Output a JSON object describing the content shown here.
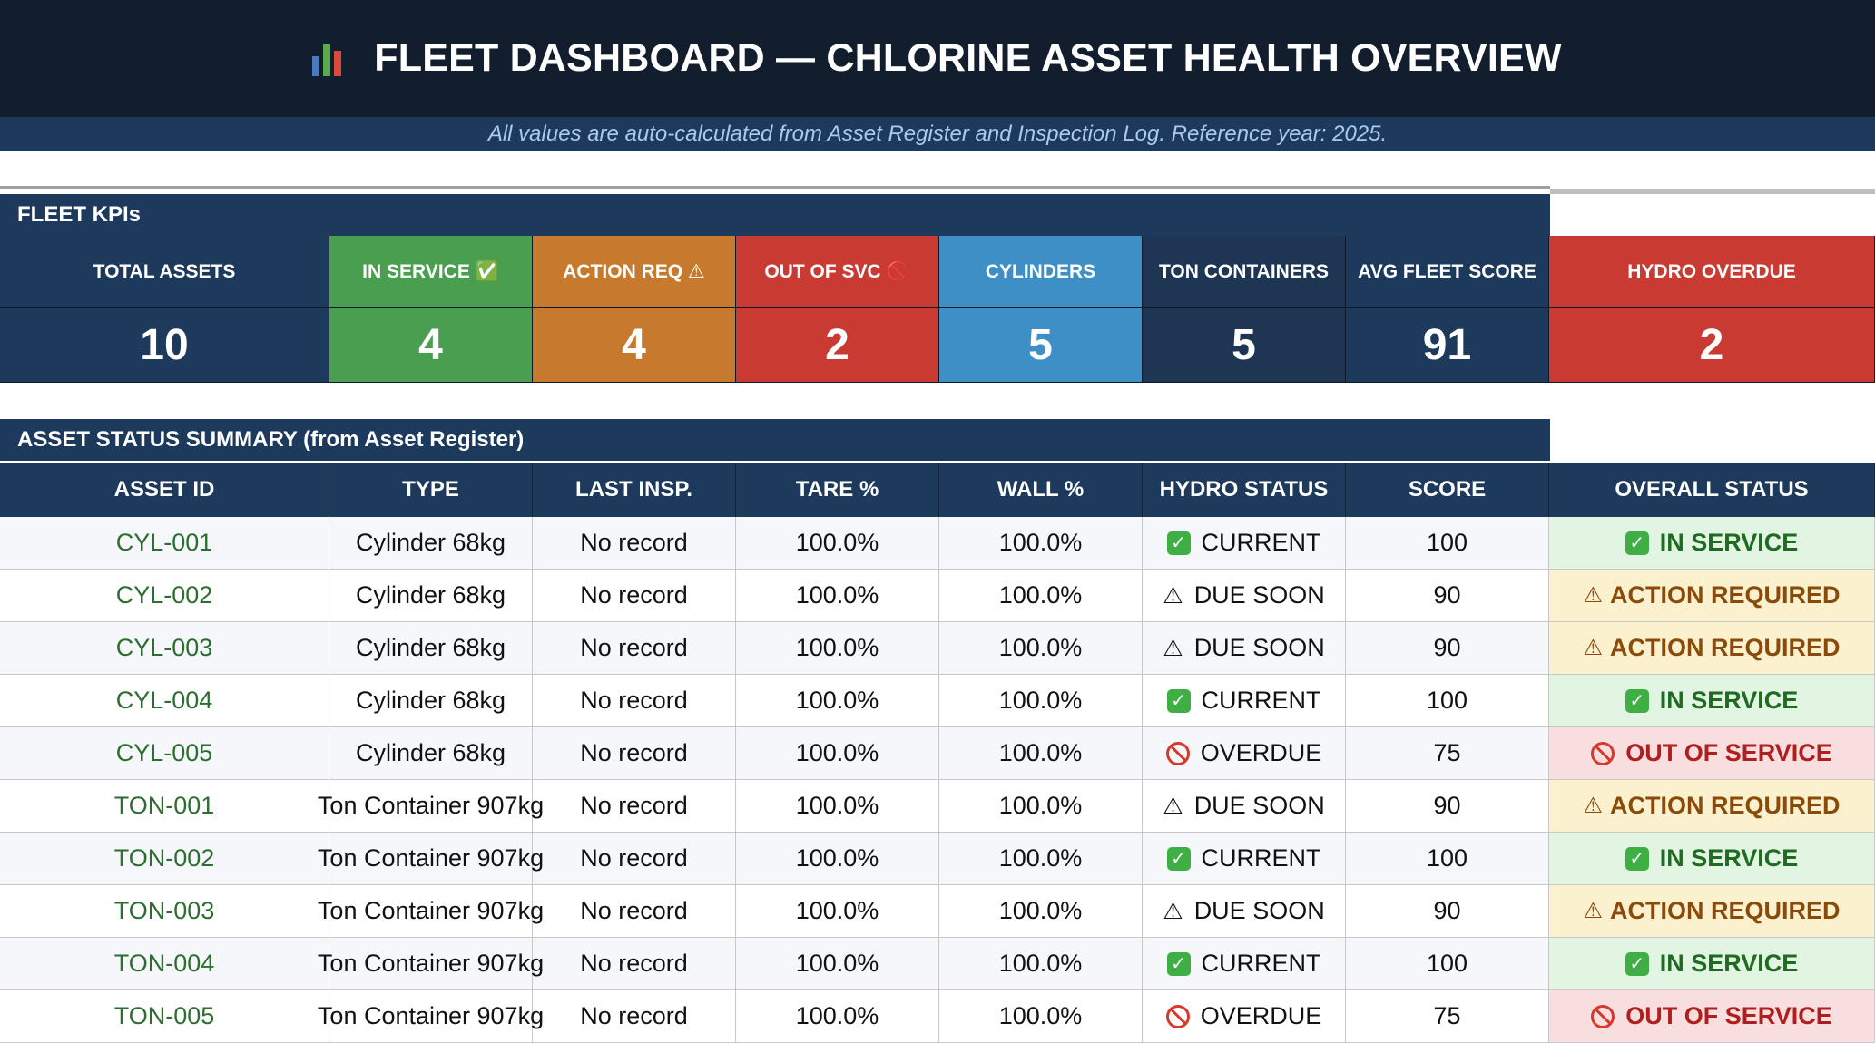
{
  "header": {
    "title": "FLEET DASHBOARD — CHLORINE ASSET HEALTH OVERVIEW",
    "title_icon": "bar-chart-icon",
    "subtitle": "All values are auto-calculated from Asset Register and Inspection Log. Reference year: 2025."
  },
  "kpis": {
    "section_title": "FLEET KPIs",
    "items": [
      {
        "label": "TOTAL ASSETS",
        "value": "10",
        "color": "#1d3a5c"
      },
      {
        "label": "IN SERVICE ✅",
        "value": "4",
        "color": "#4a9e4f"
      },
      {
        "label": "ACTION REQ ⚠",
        "value": "4",
        "color": "#c77a2e"
      },
      {
        "label": "OUT OF SVC 🚫",
        "value": "2",
        "color": "#c93a33"
      },
      {
        "label": "CYLINDERS",
        "value": "5",
        "color": "#3d8fc5"
      },
      {
        "label": "TON CONTAINERS",
        "value": "5",
        "color": "#1e3554"
      },
      {
        "label": "AVG FLEET SCORE",
        "value": "91",
        "color": "#1d3a5c"
      },
      {
        "label": "HYDRO OVERDUE",
        "value": "2",
        "color": "#c93a33"
      }
    ]
  },
  "summary": {
    "section_title": "ASSET STATUS SUMMARY (from Asset Register)",
    "columns": [
      "ASSET ID",
      "TYPE",
      "LAST INSP.",
      "TARE %",
      "WALL %",
      "HYDRO STATUS",
      "SCORE",
      "OVERALL STATUS"
    ],
    "rows": [
      {
        "asset_id": "CYL-001",
        "type": "Cylinder 68kg",
        "last_insp": "No record",
        "tare": "100.0%",
        "wall": "100.0%",
        "hydro_icon": "check",
        "hydro": "CURRENT",
        "score": "100",
        "status_icon": "check",
        "status": "IN SERVICE",
        "status_kind": "in"
      },
      {
        "asset_id": "CYL-002",
        "type": "Cylinder 68kg",
        "last_insp": "No record",
        "tare": "100.0%",
        "wall": "100.0%",
        "hydro_icon": "warn",
        "hydro": "DUE SOON",
        "score": "90",
        "status_icon": "warn",
        "status": "ACTION REQUIRED",
        "status_kind": "act"
      },
      {
        "asset_id": "CYL-003",
        "type": "Cylinder 68kg",
        "last_insp": "No record",
        "tare": "100.0%",
        "wall": "100.0%",
        "hydro_icon": "warn",
        "hydro": "DUE SOON",
        "score": "90",
        "status_icon": "warn",
        "status": "ACTION REQUIRED",
        "status_kind": "act"
      },
      {
        "asset_id": "CYL-004",
        "type": "Cylinder 68kg",
        "last_insp": "No record",
        "tare": "100.0%",
        "wall": "100.0%",
        "hydro_icon": "check",
        "hydro": "CURRENT",
        "score": "100",
        "status_icon": "check",
        "status": "IN SERVICE",
        "status_kind": "in"
      },
      {
        "asset_id": "CYL-005",
        "type": "Cylinder 68kg",
        "last_insp": "No record",
        "tare": "100.0%",
        "wall": "100.0%",
        "hydro_icon": "block",
        "hydro": "OVERDUE",
        "score": "75",
        "status_icon": "block",
        "status": "OUT OF SERVICE",
        "status_kind": "out"
      },
      {
        "asset_id": "TON-001",
        "type": "Ton Container 907kg",
        "last_insp": "No record",
        "tare": "100.0%",
        "wall": "100.0%",
        "hydro_icon": "warn",
        "hydro": "DUE SOON",
        "score": "90",
        "status_icon": "warn",
        "status": "ACTION REQUIRED",
        "status_kind": "act"
      },
      {
        "asset_id": "TON-002",
        "type": "Ton Container 907kg",
        "last_insp": "No record",
        "tare": "100.0%",
        "wall": "100.0%",
        "hydro_icon": "check",
        "hydro": "CURRENT",
        "score": "100",
        "status_icon": "check",
        "status": "IN SERVICE",
        "status_kind": "in"
      },
      {
        "asset_id": "TON-003",
        "type": "Ton Container 907kg",
        "last_insp": "No record",
        "tare": "100.0%",
        "wall": "100.0%",
        "hydro_icon": "warn",
        "hydro": "DUE SOON",
        "score": "90",
        "status_icon": "warn",
        "status": "ACTION REQUIRED",
        "status_kind": "act"
      },
      {
        "asset_id": "TON-004",
        "type": "Ton Container 907kg",
        "last_insp": "No record",
        "tare": "100.0%",
        "wall": "100.0%",
        "hydro_icon": "check",
        "hydro": "CURRENT",
        "score": "100",
        "status_icon": "check",
        "status": "IN SERVICE",
        "status_kind": "in"
      },
      {
        "asset_id": "TON-005",
        "type": "Ton Container 907kg",
        "last_insp": "No record",
        "tare": "100.0%",
        "wall": "100.0%",
        "hydro_icon": "block",
        "hydro": "OVERDUE",
        "score": "75",
        "status_icon": "block",
        "status": "OUT OF SERVICE",
        "status_kind": "out"
      }
    ]
  }
}
